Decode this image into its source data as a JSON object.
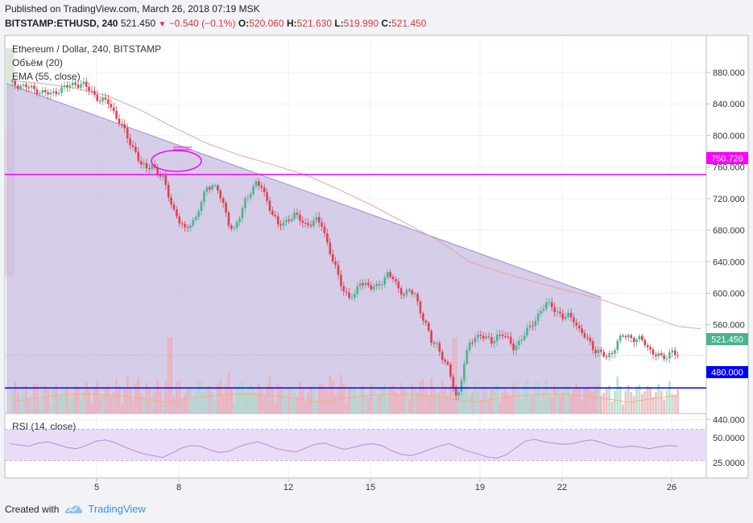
{
  "header": {
    "published": "Published on TradingView.com, March 26, 2018 07:19 MSK",
    "symbol": "BITSTAMP:ETHUSD, 240",
    "last": "521.450",
    "change": "−0.540 (−0.1%)",
    "o_label": "O:",
    "o_value": "520.060",
    "h_label": "H:",
    "h_value": "521.630",
    "l_label": "L:",
    "l_value": "519.990",
    "c_label": "C:",
    "c_value": "521.450"
  },
  "legend": {
    "title": "Ethereum / Dollar, 240, BITSTAMP",
    "volume": "Объём (20)",
    "ema": "EMA (55, close)",
    "rsi": "RSI (14, close)"
  },
  "footer": {
    "created": "Created with",
    "brand": "TradingView"
  },
  "colors": {
    "up": "#4cb28c",
    "down": "#e0404f",
    "trend_fill": "#c8bce0",
    "magenta": "#ff00ff",
    "blue": "#0000ff",
    "ema": "#e6a3a3",
    "rsi": "#b38fd6"
  },
  "chart_data": {
    "type": "candlestick",
    "symbol": "BITSTAMP:ETHUSD",
    "interval": "240",
    "y_ticks": [
      "880.000",
      "840.000",
      "800.000",
      "760.000",
      "720.000",
      "680.000",
      "640.000",
      "600.000",
      "560.000",
      "440.000"
    ],
    "x_ticks": [
      "5",
      "8",
      "12",
      "15",
      "19",
      "22",
      "26"
    ],
    "ylim": [
      430,
      890
    ],
    "price_labels": {
      "current": "521.450",
      "resistance": "750.726",
      "support": "480.000"
    },
    "horizontal_lines": [
      {
        "name": "resistance",
        "value": 750.726
      },
      {
        "name": "support",
        "value": 480.0
      }
    ],
    "close_path": [
      [
        0,
        866
      ],
      [
        3,
        864
      ],
      [
        6,
        862
      ],
      [
        9,
        858
      ],
      [
        12,
        855
      ],
      [
        15,
        852
      ],
      [
        18,
        858
      ],
      [
        21,
        862
      ],
      [
        24,
        866
      ],
      [
        27,
        864
      ],
      [
        30,
        855
      ],
      [
        33,
        845
      ],
      [
        36,
        842
      ],
      [
        38,
        830
      ],
      [
        40,
        818
      ],
      [
        42,
        805
      ],
      [
        44,
        790
      ],
      [
        46,
        780
      ],
      [
        48,
        762
      ],
      [
        50,
        758
      ],
      [
        52,
        764
      ],
      [
        54,
        752
      ],
      [
        56,
        745
      ],
      [
        58,
        725
      ],
      [
        60,
        705
      ],
      [
        62,
        690
      ],
      [
        64,
        680
      ],
      [
        66,
        690
      ],
      [
        68,
        695
      ],
      [
        70,
        715
      ],
      [
        72,
        735
      ],
      [
        74,
        738
      ],
      [
        76,
        730
      ],
      [
        78,
        712
      ],
      [
        80,
        690
      ],
      [
        82,
        680
      ],
      [
        84,
        696
      ],
      [
        86,
        718
      ],
      [
        88,
        730
      ],
      [
        90,
        738
      ],
      [
        92,
        735
      ],
      [
        94,
        718
      ],
      [
        96,
        700
      ],
      [
        98,
        686
      ],
      [
        100,
        690
      ],
      [
        102,
        695
      ],
      [
        104,
        698
      ],
      [
        106,
        694
      ],
      [
        108,
        688
      ],
      [
        110,
        688
      ],
      [
        112,
        692
      ],
      [
        114,
        688
      ],
      [
        116,
        664
      ],
      [
        118,
        640
      ],
      [
        120,
        622
      ],
      [
        122,
        604
      ],
      [
        124,
        595
      ],
      [
        126,
        596
      ],
      [
        128,
        616
      ],
      [
        130,
        612
      ],
      [
        132,
        606
      ],
      [
        134,
        608
      ],
      [
        136,
        616
      ],
      [
        138,
        624
      ],
      [
        140,
        618
      ],
      [
        142,
        606
      ],
      [
        144,
        600
      ],
      [
        146,
        602
      ],
      [
        148,
        598
      ],
      [
        150,
        578
      ],
      [
        152,
        560
      ],
      [
        154,
        538
      ],
      [
        156,
        535
      ],
      [
        158,
        520
      ],
      [
        160,
        505
      ],
      [
        162,
        482
      ],
      [
        163,
        470
      ],
      [
        164,
        475
      ],
      [
        166,
        512
      ],
      [
        168,
        535
      ],
      [
        170,
        545
      ],
      [
        172,
        548
      ],
      [
        174,
        542
      ],
      [
        176,
        538
      ],
      [
        178,
        547
      ],
      [
        180,
        548
      ],
      [
        182,
        540
      ],
      [
        184,
        532
      ],
      [
        186,
        538
      ],
      [
        188,
        547
      ],
      [
        190,
        557
      ],
      [
        192,
        568
      ],
      [
        194,
        577
      ],
      [
        196,
        586
      ],
      [
        198,
        585
      ],
      [
        200,
        576
      ],
      [
        202,
        568
      ],
      [
        204,
        572
      ],
      [
        206,
        568
      ],
      [
        208,
        552
      ],
      [
        210,
        545
      ],
      [
        212,
        538
      ],
      [
        214,
        527
      ],
      [
        216,
        523
      ],
      [
        218,
        519
      ],
      [
        220,
        526
      ],
      [
        222,
        538
      ],
      [
        224,
        546
      ],
      [
        226,
        546
      ],
      [
        228,
        542
      ],
      [
        230,
        541
      ],
      [
        232,
        537
      ],
      [
        234,
        528
      ],
      [
        236,
        522
      ],
      [
        238,
        518
      ],
      [
        240,
        520
      ],
      [
        242,
        528
      ],
      [
        243,
        524
      ],
      [
        244,
        521.45
      ]
    ],
    "ema55_path": [
      [
        0,
        870
      ],
      [
        12,
        866
      ],
      [
        24,
        860
      ],
      [
        36,
        850
      ],
      [
        48,
        832
      ],
      [
        60,
        810
      ],
      [
        72,
        790
      ],
      [
        84,
        775
      ],
      [
        96,
        763
      ],
      [
        108,
        750
      ],
      [
        120,
        732
      ],
      [
        132,
        712
      ],
      [
        144,
        690
      ],
      [
        156,
        668
      ],
      [
        168,
        640
      ],
      [
        180,
        626
      ],
      [
        192,
        614
      ],
      [
        204,
        603
      ],
      [
        216,
        592
      ],
      [
        228,
        578
      ],
      [
        244,
        558
      ]
    ],
    "trend_line": {
      "from": [
        0,
        866
      ],
      "to": [
        216,
        595
      ]
    },
    "rsi": {
      "levels": [
        50,
        25
      ],
      "visible_ticks": [
        "50.0000",
        "25.0000"
      ],
      "values": [
        52,
        50,
        48,
        53,
        55,
        51,
        46,
        44,
        49,
        56,
        58,
        54,
        47,
        41,
        36,
        33,
        30,
        37,
        45,
        49,
        48,
        42,
        38,
        40,
        47,
        52,
        55,
        50,
        44,
        41,
        39,
        45,
        51,
        53,
        48,
        43,
        46,
        50,
        52,
        49,
        41,
        35,
        33,
        37,
        43,
        48,
        52,
        46,
        40,
        36,
        31,
        29,
        34,
        45,
        56,
        59,
        55,
        53,
        51,
        52,
        56,
        58,
        54,
        49,
        46,
        48,
        47,
        44,
        47,
        49,
        48
      ]
    }
  }
}
